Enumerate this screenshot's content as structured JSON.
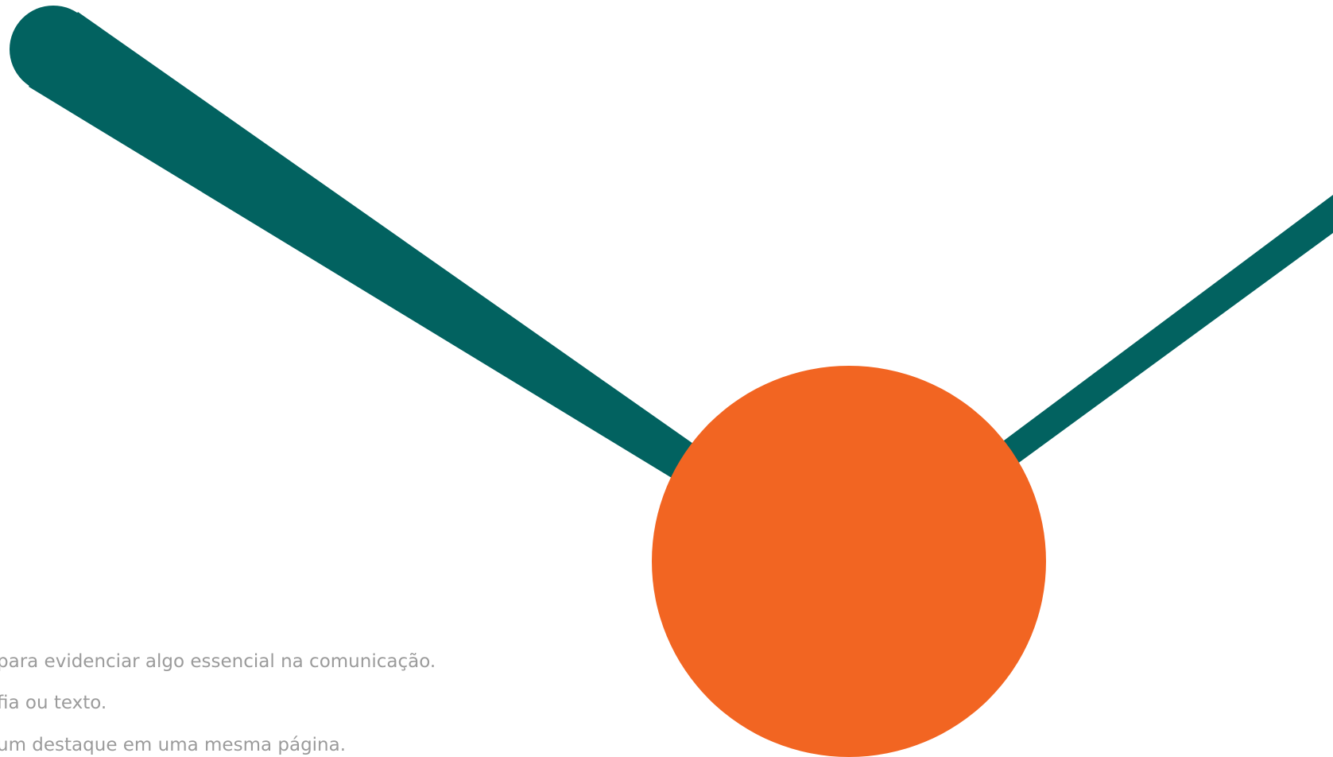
{
  "colors": {
    "teal": "#026260",
    "orange": "#f26522",
    "text_gray": "#9b9b9b",
    "background": "#ffffff"
  },
  "text_lines": [
    "para evidenciar algo essencial na comunicação.",
    "fia ou texto.",
    "um destaque em uma mesma página."
  ]
}
